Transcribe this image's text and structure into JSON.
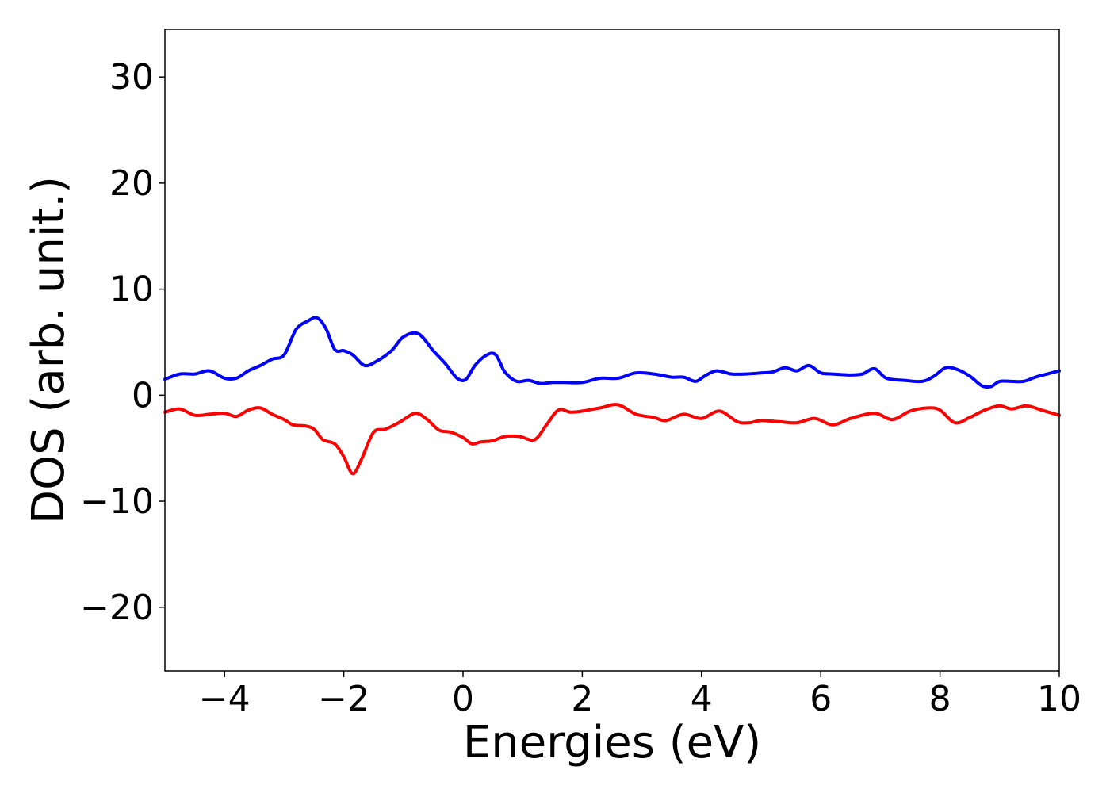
{
  "chart_data": {
    "type": "line",
    "title": "",
    "xlabel": "Energies (eV)",
    "ylabel": "DOS (arb. unit.)",
    "xlim": [
      -5,
      10
    ],
    "ylim": [
      -26,
      34.5
    ],
    "xticks": [
      -4,
      -2,
      0,
      2,
      4,
      6,
      8,
      10
    ],
    "xtick_labels": [
      "−4",
      "−2",
      "0",
      "2",
      "4",
      "6",
      "8",
      "10"
    ],
    "yticks": [
      -20,
      -10,
      0,
      10,
      20,
      30
    ],
    "ytick_labels": [
      "−20",
      "−10",
      "0",
      "10",
      "20",
      "30"
    ],
    "grid": false,
    "series": [
      {
        "color": "#0000ff",
        "x": [
          -5.0,
          -4.75,
          -4.5,
          -4.25,
          -4.0,
          -3.8,
          -3.6,
          -3.4,
          -3.2,
          -3.0,
          -2.8,
          -2.6,
          -2.45,
          -2.3,
          -2.15,
          -2.0,
          -1.85,
          -1.65,
          -1.45,
          -1.2,
          -1.0,
          -0.75,
          -0.5,
          -0.3,
          -0.1,
          0.05,
          0.2,
          0.4,
          0.55,
          0.7,
          0.9,
          1.1,
          1.3,
          1.5,
          1.7,
          2.0,
          2.3,
          2.6,
          2.9,
          3.2,
          3.5,
          3.7,
          3.9,
          4.05,
          4.25,
          4.5,
          4.75,
          5.0,
          5.2,
          5.4,
          5.6,
          5.8,
          6.0,
          6.2,
          6.5,
          6.7,
          6.9,
          7.1,
          7.4,
          7.7,
          7.9,
          8.1,
          8.3,
          8.5,
          8.7,
          8.85,
          9.0,
          9.2,
          9.4,
          9.6,
          9.8,
          10.0
        ],
        "y": [
          1.5,
          2.0,
          2.0,
          2.3,
          1.6,
          1.6,
          2.3,
          2.8,
          3.4,
          3.8,
          6.2,
          7.0,
          7.3,
          6.3,
          4.3,
          4.2,
          3.8,
          2.8,
          3.2,
          4.2,
          5.5,
          5.8,
          4.2,
          3.0,
          1.6,
          1.5,
          2.8,
          3.8,
          3.8,
          2.2,
          1.3,
          1.4,
          1.1,
          1.2,
          1.2,
          1.2,
          1.6,
          1.6,
          2.1,
          2.0,
          1.7,
          1.7,
          1.3,
          1.8,
          2.3,
          2.0,
          2.0,
          2.1,
          2.2,
          2.6,
          2.3,
          2.8,
          2.1,
          2.0,
          1.9,
          2.0,
          2.5,
          1.6,
          1.4,
          1.3,
          1.8,
          2.6,
          2.4,
          1.8,
          0.9,
          0.8,
          1.3,
          1.3,
          1.3,
          1.7,
          2.0,
          2.3
        ]
      },
      {
        "color": "#ff0000",
        "x": [
          -5.0,
          -4.75,
          -4.5,
          -4.25,
          -4.0,
          -3.8,
          -3.6,
          -3.4,
          -3.2,
          -3.0,
          -2.85,
          -2.65,
          -2.5,
          -2.35,
          -2.15,
          -2.0,
          -1.85,
          -1.7,
          -1.5,
          -1.3,
          -1.05,
          -0.8,
          -0.6,
          -0.4,
          -0.2,
          0.0,
          0.15,
          0.3,
          0.5,
          0.7,
          0.95,
          1.2,
          1.4,
          1.6,
          1.8,
          2.0,
          2.3,
          2.6,
          2.9,
          3.2,
          3.4,
          3.7,
          4.0,
          4.3,
          4.6,
          4.8,
          5.0,
          5.3,
          5.6,
          5.9,
          6.2,
          6.5,
          6.9,
          7.2,
          7.5,
          7.8,
          8.0,
          8.25,
          8.5,
          8.75,
          9.0,
          9.2,
          9.45,
          9.7,
          10.0
        ],
        "y": [
          -1.6,
          -1.3,
          -1.9,
          -1.8,
          -1.7,
          -2.0,
          -1.4,
          -1.2,
          -1.8,
          -2.3,
          -2.8,
          -2.9,
          -3.2,
          -4.2,
          -4.6,
          -5.8,
          -7.4,
          -6.0,
          -3.5,
          -3.2,
          -2.5,
          -1.7,
          -2.3,
          -3.3,
          -3.5,
          -4.0,
          -4.6,
          -4.4,
          -4.3,
          -3.9,
          -3.9,
          -4.2,
          -2.8,
          -1.4,
          -1.6,
          -1.5,
          -1.2,
          -0.9,
          -1.8,
          -2.1,
          -2.4,
          -1.8,
          -2.2,
          -1.5,
          -2.5,
          -2.6,
          -2.4,
          -2.5,
          -2.6,
          -2.2,
          -2.8,
          -2.2,
          -1.7,
          -2.3,
          -1.5,
          -1.2,
          -1.4,
          -2.6,
          -2.1,
          -1.4,
          -1.0,
          -1.3,
          -1.0,
          -1.4,
          -1.9
        ]
      }
    ]
  }
}
